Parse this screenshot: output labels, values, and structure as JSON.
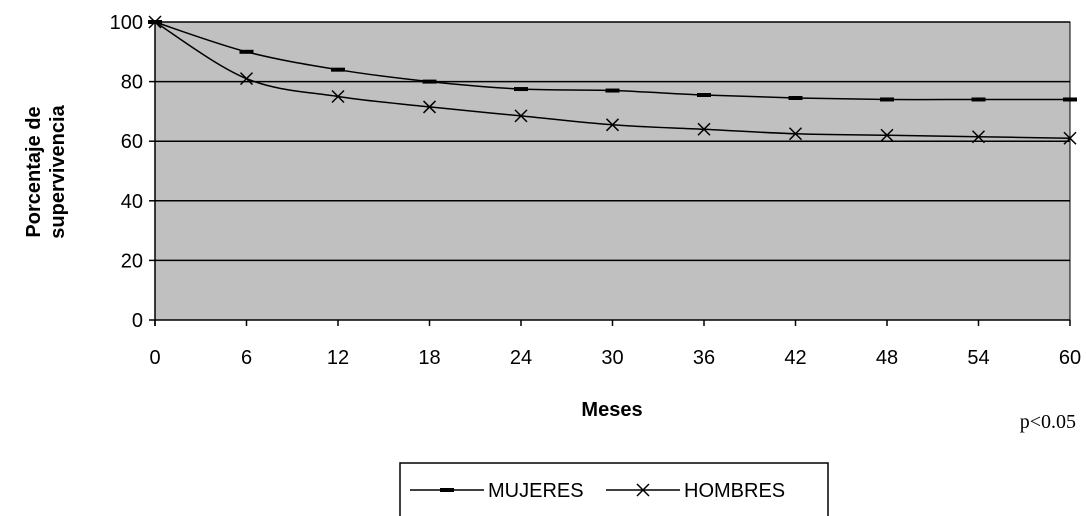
{
  "chart_data": {
    "type": "line",
    "title": "",
    "xlabel": "Meses",
    "ylabel_lines": [
      "Porcentaje de",
      "supervivencia"
    ],
    "x": [
      0,
      6,
      12,
      18,
      24,
      30,
      36,
      42,
      48,
      54,
      60
    ],
    "xlim": [
      0,
      60
    ],
    "ylim": [
      0,
      100
    ],
    "yticks": [
      0,
      20,
      40,
      60,
      80,
      100
    ],
    "grid": "horizontal",
    "series": [
      {
        "name": "MUJERES",
        "marker": "dash",
        "values": [
          100,
          90,
          84,
          80,
          77.5,
          77,
          75.5,
          74.5,
          74,
          74,
          74
        ]
      },
      {
        "name": "HOMBRES",
        "marker": "x",
        "values": [
          100,
          81,
          75,
          71.5,
          68.5,
          65.5,
          64,
          62.5,
          62,
          61.5,
          61
        ]
      }
    ],
    "annotation": "p<0.05",
    "legend_position": "bottom-center",
    "colors": {
      "plot_background": "#c0c0c0",
      "line": "#000000",
      "gridline": "#000000"
    }
  }
}
